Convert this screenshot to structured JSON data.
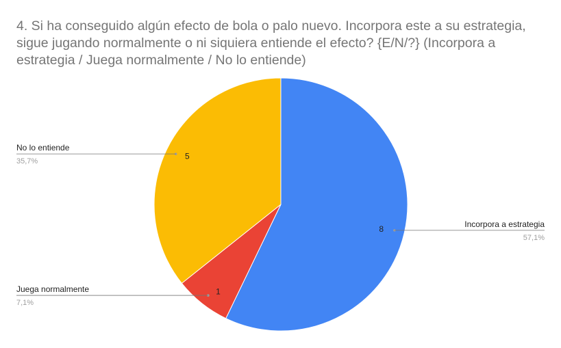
{
  "chart_data": {
    "type": "pie",
    "title": "4. Si ha conseguido algún efecto de bola o palo nuevo. Incorpora este a su estrategia, sigue jugando normalmente o ni siquiera entiende el efecto? {E/N/?} (Incorpora a estrategia / Juega normalmente / No lo entiende)",
    "slices": [
      {
        "label": "Incorpora a estrategia",
        "value": 8,
        "percent_label": "57,1%",
        "color": "#4285F4"
      },
      {
        "label": "Juega normalmente",
        "value": 1,
        "percent_label": "7,1%",
        "color": "#EA4335"
      },
      {
        "label": "No lo entiende",
        "value": 5,
        "percent_label": "35,7%",
        "color": "#FBBC04"
      }
    ],
    "start": "top",
    "direction": "clockwise",
    "legend": "none"
  }
}
